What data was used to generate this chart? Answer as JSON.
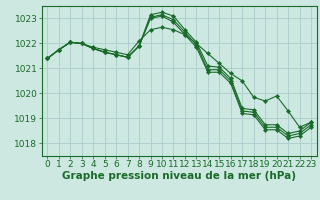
{
  "bg_color": "#cce8e0",
  "grid_color": "#aacccc",
  "line_color": "#1a6b2a",
  "marker_color": "#1a6b2a",
  "xlabel": "Graphe pression niveau de la mer (hPa)",
  "xlabel_fontsize": 7.5,
  "tick_fontsize": 6.5,
  "xlim": [
    -0.5,
    23.5
  ],
  "ylim": [
    1017.5,
    1023.5
  ],
  "yticks": [
    1018,
    1019,
    1020,
    1021,
    1022,
    1023
  ],
  "xticks": [
    0,
    1,
    2,
    3,
    4,
    5,
    6,
    7,
    8,
    9,
    10,
    11,
    12,
    13,
    14,
    15,
    16,
    17,
    18,
    19,
    20,
    21,
    22,
    23
  ],
  "series": [
    [
      1021.4,
      1021.75,
      1022.05,
      1022.0,
      1021.85,
      1021.75,
      1021.65,
      1021.55,
      1022.1,
      1022.55,
      1022.65,
      1022.55,
      1022.35,
      1022.0,
      1021.6,
      1021.2,
      1020.8,
      1020.5,
      1019.85,
      1019.7,
      1019.9,
      1019.3,
      1018.65,
      1018.85
    ],
    [
      1021.4,
      1021.75,
      1022.05,
      1022.0,
      1021.8,
      1021.65,
      1021.55,
      1021.45,
      1021.9,
      1023.15,
      1023.25,
      1023.1,
      1022.55,
      1022.05,
      1021.1,
      1021.05,
      1020.6,
      1019.4,
      1019.35,
      1018.75,
      1018.75,
      1018.4,
      1018.5,
      1018.85
    ],
    [
      1021.4,
      1021.75,
      1022.05,
      1022.0,
      1021.8,
      1021.65,
      1021.55,
      1021.45,
      1021.9,
      1023.05,
      1023.15,
      1022.95,
      1022.45,
      1021.95,
      1020.95,
      1020.95,
      1020.5,
      1019.3,
      1019.25,
      1018.65,
      1018.65,
      1018.3,
      1018.4,
      1018.75
    ],
    [
      1021.4,
      1021.75,
      1022.05,
      1022.0,
      1021.8,
      1021.65,
      1021.55,
      1021.45,
      1021.9,
      1023.0,
      1023.1,
      1022.85,
      1022.35,
      1021.85,
      1020.85,
      1020.85,
      1020.4,
      1019.2,
      1019.15,
      1018.55,
      1018.55,
      1018.2,
      1018.3,
      1018.65
    ]
  ]
}
